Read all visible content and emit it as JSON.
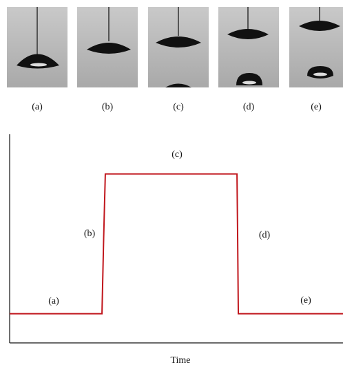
{
  "panels": {
    "labels": [
      "(a)",
      "(b)",
      "(c)",
      "(d)",
      "(e)"
    ]
  },
  "chart_data": {
    "type": "line",
    "x_label": "Time",
    "x": [
      0,
      27.7,
      28.2,
      28.7,
      30,
      68.2,
      68.4,
      68.6,
      100
    ],
    "values": [
      14,
      14,
      50,
      81,
      81,
      81,
      50,
      14,
      14
    ],
    "color": "#c0161c",
    "xlim": [
      0,
      100
    ],
    "ylim": [
      0,
      100
    ],
    "annotations": [
      "(a)",
      "(b)",
      "(c)",
      "(d)",
      "(e)"
    ]
  }
}
